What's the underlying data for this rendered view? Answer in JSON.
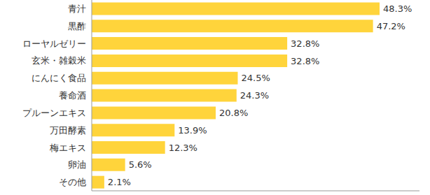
{
  "chart_data": {
    "type": "bar",
    "orientation": "horizontal",
    "categories": [
      "青汁",
      "黒酢",
      "ローヤルゼリー",
      "玄米・雑穀米",
      "にんにく食品",
      "養命酒",
      "プルーンエキス",
      "万田酵素",
      "梅エキス",
      "卵油",
      "その他"
    ],
    "values": [
      48.3,
      47.2,
      32.8,
      32.8,
      24.5,
      24.3,
      20.8,
      13.9,
      12.3,
      5.6,
      2.1
    ],
    "value_labels": [
      "48.3%",
      "47.2%",
      "32.8%",
      "32.8%",
      "24.5%",
      "24.3%",
      "20.8%",
      "13.9%",
      "12.3%",
      "5.6%",
      "2.1%"
    ],
    "color": "#ffd43b",
    "xlim": [
      0,
      55
    ],
    "data_labels": true,
    "tick_labels": "y",
    "grid": false
  }
}
